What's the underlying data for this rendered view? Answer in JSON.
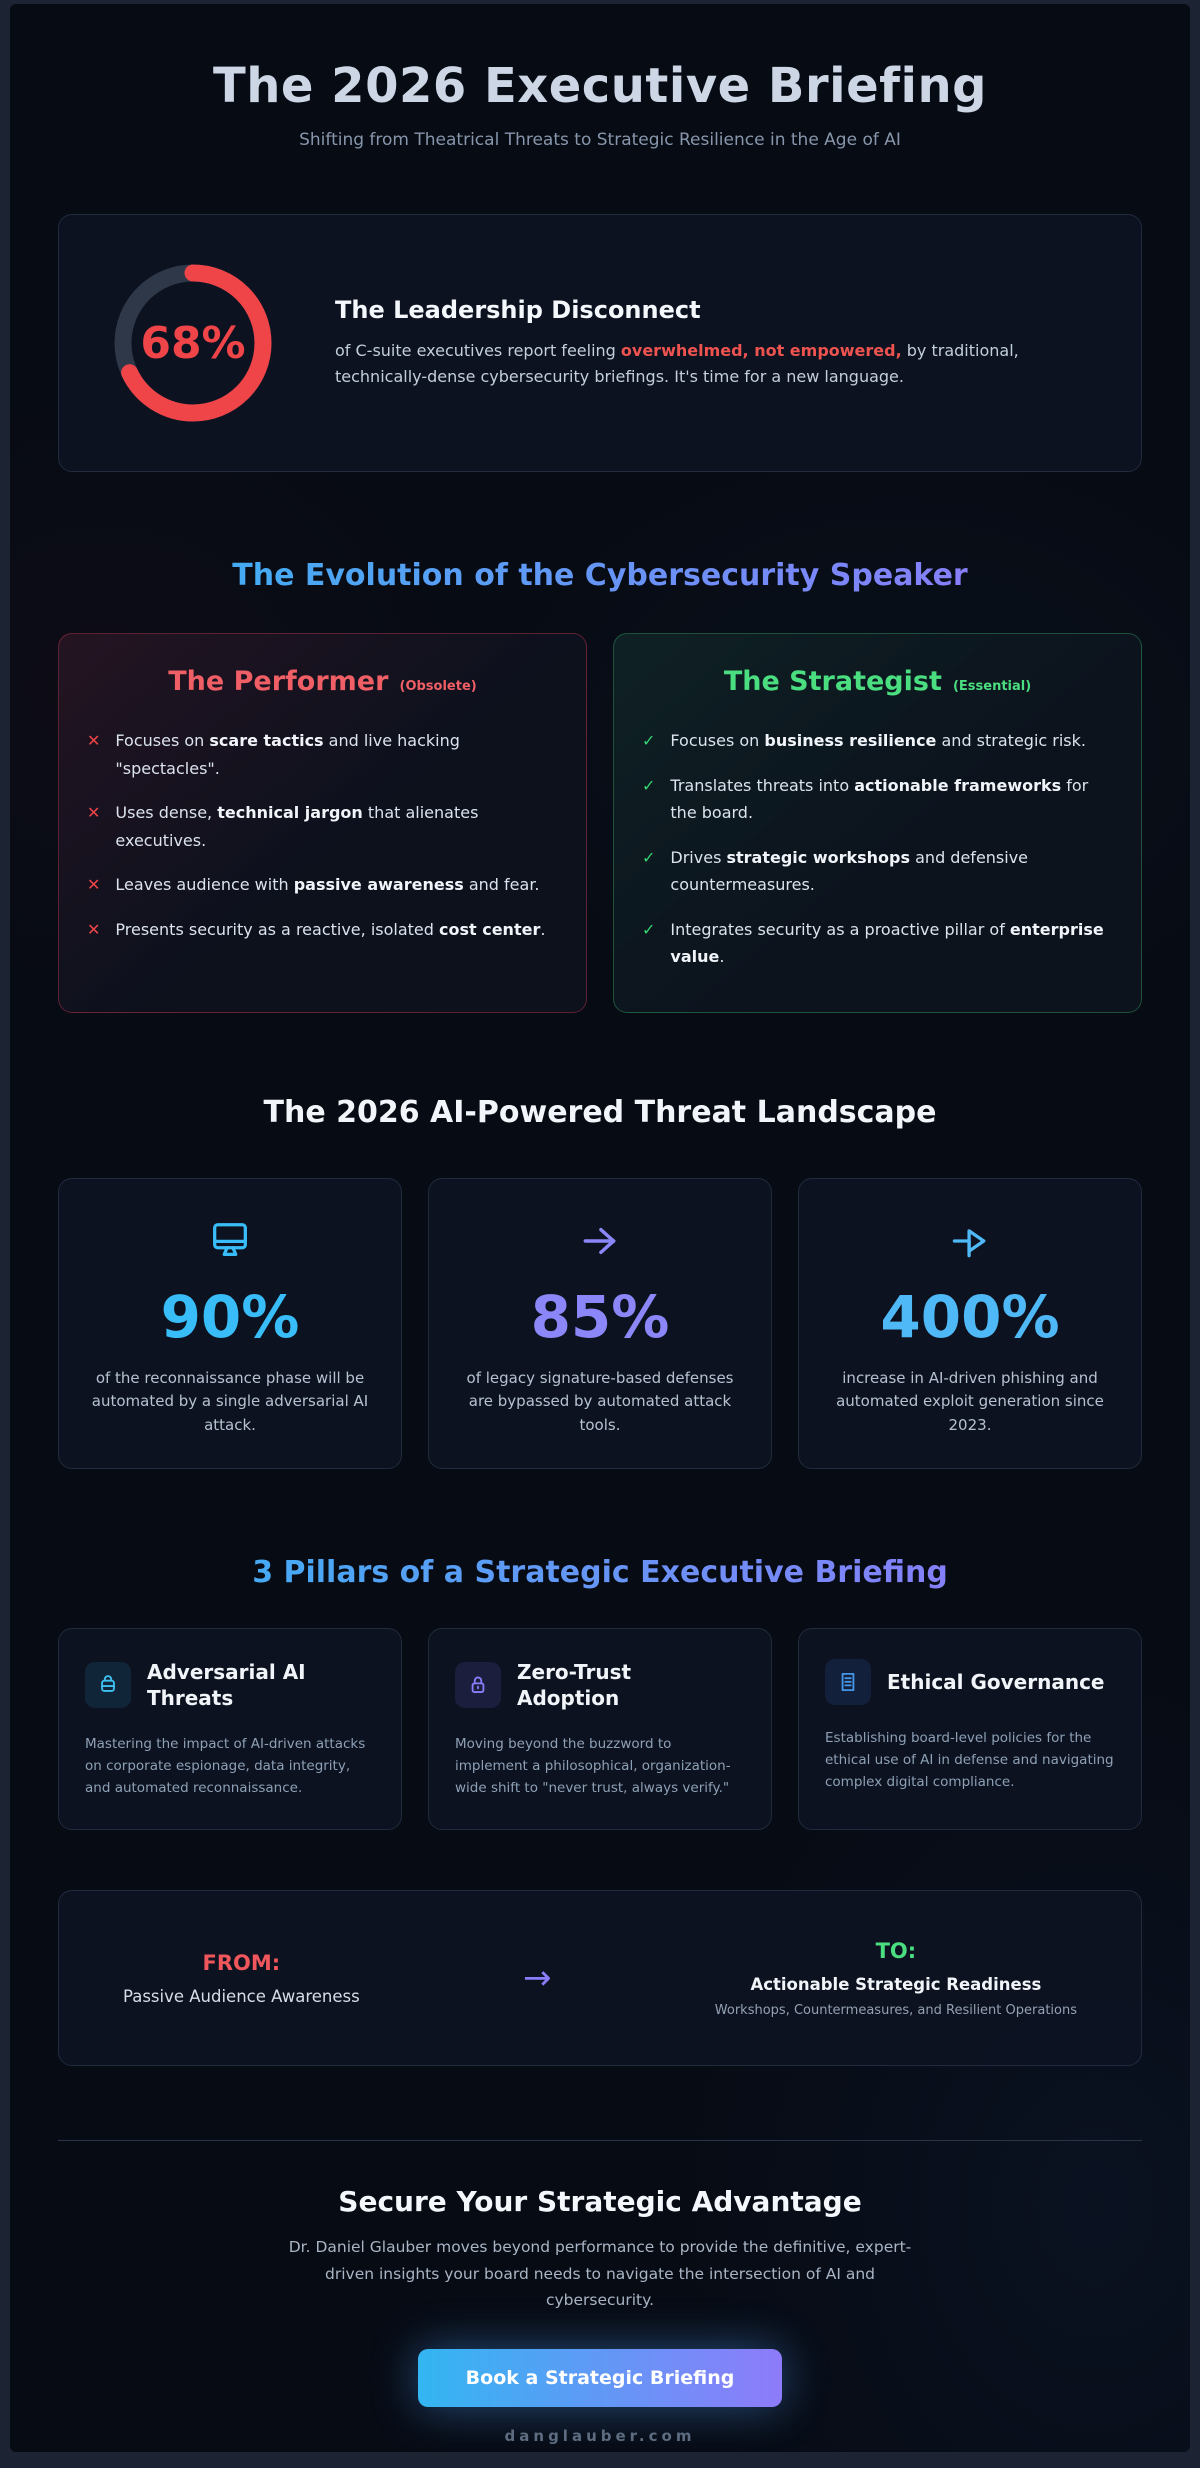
{
  "page": {
    "title": "The 2026 Executive Briefing",
    "subtitle": "Shifting from Theatrical Threats to Strategic Resilience in the Age of AI"
  },
  "disconnect": {
    "percent_label": "68%",
    "percent_value": 68,
    "heading": "The Leadership Disconnect",
    "body": [
      {
        "t": "of C-suite executives report feeling "
      },
      {
        "t": "overwhelmed, not empowered,",
        "s": "em-red"
      },
      {
        "t": " by traditional, technically-dense cybersecurity briefings. It's time for a new language."
      }
    ],
    "donut_color": "#ef4448",
    "donut_track_color": "#2e3849"
  },
  "evolution": {
    "heading": "The Evolution of the Cybersecurity Speaker",
    "performer": {
      "title": "The Performer",
      "tag": "(Obsolete)",
      "marker": "✕",
      "accent_color": "#f05f66",
      "items": [
        [
          {
            "t": "Focuses on "
          },
          {
            "t": "scare tactics",
            "s": "b"
          },
          {
            "t": " and live hacking \"spectacles\"."
          }
        ],
        [
          {
            "t": "Uses dense, "
          },
          {
            "t": "technical jargon",
            "s": "b"
          },
          {
            "t": " that alienates executives."
          }
        ],
        [
          {
            "t": "Leaves audience with "
          },
          {
            "t": "passive awareness",
            "s": "b"
          },
          {
            "t": " and fear."
          }
        ],
        [
          {
            "t": "Presents security as a reactive, isolated "
          },
          {
            "t": "cost center",
            "s": "b"
          },
          {
            "t": "."
          }
        ]
      ]
    },
    "strategist": {
      "title": "The Strategist",
      "tag": "(Essential)",
      "marker": "✓",
      "accent_color": "#4ade80",
      "items": [
        [
          {
            "t": "Focuses on "
          },
          {
            "t": "business resilience",
            "s": "b"
          },
          {
            "t": " and strategic risk."
          }
        ],
        [
          {
            "t": "Translates threats into "
          },
          {
            "t": "actionable frameworks",
            "s": "b"
          },
          {
            "t": " for the board."
          }
        ],
        [
          {
            "t": "Drives "
          },
          {
            "t": "strategic workshops",
            "s": "b"
          },
          {
            "t": " and defensive countermeasures."
          }
        ],
        [
          {
            "t": "Integrates security as a proactive pillar of "
          },
          {
            "t": "enterprise value",
            "s": "b"
          },
          {
            "t": "."
          }
        ]
      ]
    }
  },
  "threats": {
    "heading": "The 2026 AI-Powered Threat Landscape",
    "stats": [
      {
        "icon": "monitor-icon",
        "value": "90%",
        "color": "#38bdf8",
        "desc": "of the reconnaissance phase will be automated by a single adversarial AI attack."
      },
      {
        "icon": "arrow-right-icon",
        "value": "85%",
        "color": "#8b87f8",
        "desc": "of legacy signature-based defenses are bypassed by automated attack tools."
      },
      {
        "icon": "arrow-outline-icon",
        "value": "400%",
        "color": "#4fb8f6",
        "desc": "increase in AI-driven phishing and automated exploit generation since 2023."
      }
    ]
  },
  "pillars": {
    "heading": "3 Pillars of a Strategic Executive Briefing",
    "cards": [
      {
        "icon": "ai-lock-icon",
        "title": "Adversarial AI Threats",
        "desc": "Mastering the impact of AI-driven attacks on corporate espionage, data integrity, and automated reconnaissance."
      },
      {
        "icon": "padlock-icon",
        "title": "Zero-Trust Adoption",
        "desc": "Moving beyond the buzzword to implement a philosophical, organization-wide shift to \"never trust, always verify.\""
      },
      {
        "icon": "document-icon",
        "title": "Ethical Governance",
        "desc": "Establishing board-level policies for the ethical use of AI in defense and navigating complex digital compliance."
      }
    ]
  },
  "transition": {
    "from_label": "FROM:",
    "from_value": "Passive Audience Awareness",
    "arrow": "→",
    "to_label": "TO:",
    "to_value": "Actionable Strategic Readiness",
    "to_sub": "Workshops, Countermeasures, and Resilient Operations"
  },
  "cta": {
    "heading": "Secure Your Strategic Advantage",
    "body": "Dr. Daniel Glauber moves beyond performance to provide the definitive, expert-driven insights your board needs to navigate the intersection of AI and cybersecurity.",
    "button_label": "Book a Strategic Briefing",
    "website": "danglauber.com",
    "button_gradient": [
      "#33b6f2",
      "#8e7bfa"
    ]
  }
}
